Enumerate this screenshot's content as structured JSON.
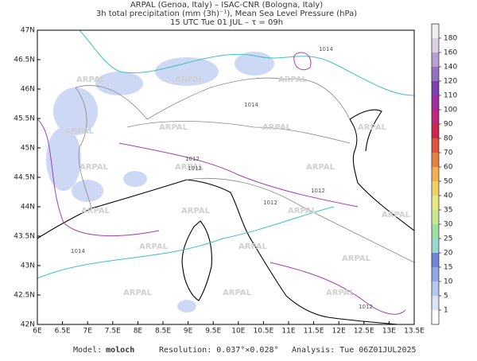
{
  "header": {
    "line1": "ARPAL (Genoa, Italy)  –  ISAC-CNR (Bologna, Italy)",
    "line2": "3h total precipitation (mm (3h)⁻¹), Mean Sea Level Pressure (hPa)",
    "line3": "15 UTC Tue 01 JUL  –  τ = 09h"
  },
  "lat_labels": [
    "47N",
    "46.5N",
    "46N",
    "45.5N",
    "45N",
    "44.5N",
    "44N",
    "43.5N",
    "43N",
    "42.5N",
    "42N"
  ],
  "lon_labels": [
    "6E",
    "6.5E",
    "7E",
    "7.5E",
    "8E",
    "8.5E",
    "9E",
    "9.5E",
    "10E",
    "10.5E",
    "11E",
    "11.5E",
    "12E",
    "12.5E",
    "13E",
    "13.5E"
  ],
  "colorbar": {
    "labels": [
      "1",
      "5",
      "10",
      "15",
      "20",
      "25",
      "30",
      "35",
      "40",
      "50",
      "60",
      "70",
      "80",
      "90",
      "100",
      "110",
      "120",
      "140",
      "160",
      "180"
    ],
    "colors": [
      "#ffffff",
      "#d8e4f8",
      "#b4c8f0",
      "#8fa8e4",
      "#6f88d8",
      "#98d8d0",
      "#9ee0a0",
      "#c8e890",
      "#e8e880",
      "#f0d060",
      "#f0b050",
      "#e88040",
      "#e05040",
      "#d02850",
      "#c02880",
      "#a030a0",
      "#8040b0",
      "#9870c0",
      "#b8a0d0",
      "#dcd0e4",
      "#f0ecf2"
    ]
  },
  "watermark": "ARPAL",
  "isobar_labels": [
    "1014",
    "1014",
    "1012",
    "1012",
    "1012",
    "1012",
    "1014",
    "1012"
  ],
  "footer": {
    "model_label": "Model:",
    "model": "moloch",
    "resolution": "Resolution: 0.037°×0.028°",
    "analysis": "Analysis: Tue 06Z01JUL2025"
  }
}
